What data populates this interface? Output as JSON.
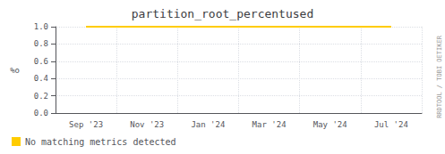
{
  "chart_data": {
    "type": "line",
    "title": "partition_root_percentused",
    "ylabel": "%o",
    "categories": [
      "Sep '23",
      "Nov '23",
      "Jan '24",
      "Mar '24",
      "May '24",
      "Jul '24"
    ],
    "series": [
      {
        "name": "No matching metrics detected",
        "color": "#ffcc00",
        "values": [
          1.0,
          1.0,
          1.0,
          1.0,
          1.0,
          1.0
        ]
      }
    ],
    "ylim": [
      0.0,
      1.0
    ],
    "yticks": [
      {
        "value": 0.0,
        "label": "0.0"
      },
      0.2,
      0.4,
      0.6,
      0.8,
      {
        "value": 1.0,
        "label": "1.0"
      }
    ],
    "grid": true,
    "legend": "lower left",
    "annotations": [
      "RRDTOOL / TOBI OETIKER"
    ]
  }
}
